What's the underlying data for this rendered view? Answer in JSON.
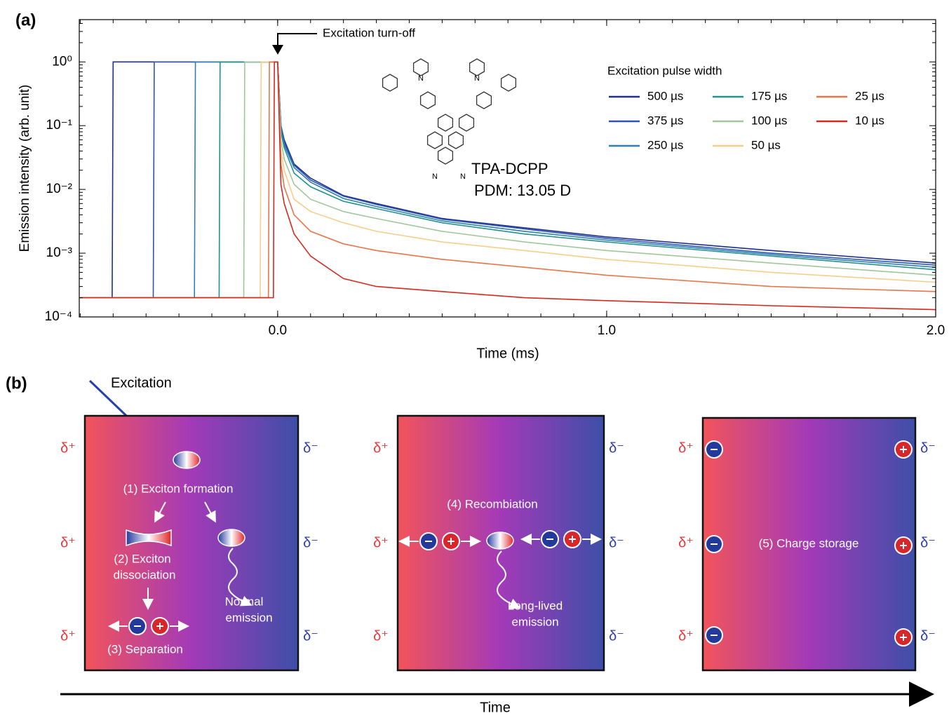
{
  "chart_data": {
    "type": "line",
    "panel_label": "(a)",
    "xlabel": "Time (ms)",
    "ylabel": "Emission intensity (arb. unit)",
    "annotation": "Excitation turn-off",
    "compound": "TPA-DCPP",
    "pdm": "PDM: 13.05 D",
    "atom_label": "N",
    "legend_title": "Excitation pulse width",
    "log_y": true,
    "xlim": [
      -0.603,
      2.0
    ],
    "xticks": [
      {
        "value": 0,
        "label": "0.0"
      },
      {
        "value": 1,
        "label": "1.0"
      },
      {
        "value": 2,
        "label": "2.0"
      }
    ],
    "ylim": [
      0.0001,
      4.6
    ],
    "yticks": [
      {
        "value": 0.0001,
        "label": "10⁻⁴"
      },
      {
        "value": 0.001,
        "label": "10⁻³"
      },
      {
        "value": 0.01,
        "label": "10⁻²"
      },
      {
        "value": 0.1,
        "label": "10⁻¹"
      },
      {
        "value": 1,
        "label": "10⁰"
      }
    ],
    "series": [
      {
        "name": "500 µs",
        "color": "#1f2f8f",
        "x": [
          -0.6,
          -0.503,
          -0.5,
          0,
          0.01,
          0.02,
          0.05,
          0.1,
          0.2,
          0.3,
          0.5,
          0.75,
          1.0,
          1.5,
          2.0
        ],
        "values": [
          0.0002,
          0.0002,
          1,
          1,
          0.1,
          0.06,
          0.025,
          0.015,
          0.008,
          0.006,
          0.0035,
          0.0025,
          0.0018,
          0.0011,
          0.0007
        ]
      },
      {
        "name": "375 µs",
        "color": "#2d55b0",
        "x": [
          -0.6,
          -0.378,
          -0.375,
          0,
          0.01,
          0.02,
          0.05,
          0.1,
          0.2,
          0.3,
          0.5,
          0.75,
          1.0,
          1.5,
          2.0
        ],
        "values": [
          0.0002,
          0.0002,
          1,
          1,
          0.1,
          0.055,
          0.024,
          0.014,
          0.0078,
          0.0058,
          0.0034,
          0.0024,
          0.0017,
          0.001,
          0.00065
        ]
      },
      {
        "name": "250 µs",
        "color": "#2f7fb0",
        "x": [
          -0.6,
          -0.253,
          -0.25,
          0,
          0.01,
          0.02,
          0.05,
          0.1,
          0.2,
          0.3,
          0.5,
          0.75,
          1.0,
          1.5,
          2.0
        ],
        "values": [
          0.0002,
          0.0002,
          1,
          1,
          0.09,
          0.05,
          0.022,
          0.013,
          0.0072,
          0.0054,
          0.0032,
          0.0022,
          0.0016,
          0.00095,
          0.0006
        ]
      },
      {
        "name": "175 µs",
        "color": "#22918f",
        "x": [
          -0.6,
          -0.178,
          -0.175,
          0,
          0.01,
          0.02,
          0.05,
          0.1,
          0.2,
          0.3,
          0.5,
          0.75,
          1.0,
          1.5,
          2.0
        ],
        "values": [
          0.0002,
          0.0002,
          1,
          1,
          0.08,
          0.045,
          0.018,
          0.011,
          0.0065,
          0.005,
          0.003,
          0.002,
          0.0015,
          0.0009,
          0.00055
        ]
      },
      {
        "name": "100 µs",
        "color": "#9fc89a",
        "x": [
          -0.6,
          -0.103,
          -0.1,
          0,
          0.01,
          0.02,
          0.05,
          0.1,
          0.2,
          0.3,
          0.5,
          0.75,
          1.0,
          1.5,
          2.0
        ],
        "values": [
          0.0002,
          0.0002,
          1,
          1,
          0.06,
          0.03,
          0.012,
          0.007,
          0.0045,
          0.0035,
          0.0022,
          0.0015,
          0.0011,
          0.0007,
          0.00045
        ]
      },
      {
        "name": "50 µs",
        "color": "#f5cf8a",
        "x": [
          -0.6,
          -0.053,
          -0.05,
          0,
          0.01,
          0.02,
          0.05,
          0.1,
          0.2,
          0.3,
          0.5,
          0.75,
          1.0,
          1.5,
          2.0
        ],
        "values": [
          0.0002,
          0.0002,
          1,
          1,
          0.04,
          0.02,
          0.007,
          0.0045,
          0.003,
          0.0022,
          0.0015,
          0.0011,
          0.0008,
          0.0005,
          0.00035
        ]
      },
      {
        "name": "25 µs",
        "color": "#e8764a",
        "x": [
          -0.6,
          -0.028,
          -0.025,
          0,
          0.01,
          0.02,
          0.05,
          0.1,
          0.2,
          0.3,
          0.5,
          0.75,
          1.0,
          1.5,
          2.0
        ],
        "values": [
          0.0002,
          0.0002,
          1,
          1,
          0.025,
          0.011,
          0.004,
          0.0022,
          0.0014,
          0.0011,
          0.0008,
          0.0006,
          0.00045,
          0.0003,
          0.00025
        ]
      },
      {
        "name": "10 µs",
        "color": "#d42a20",
        "x": [
          -0.6,
          -0.013,
          -0.01,
          0,
          0.01,
          0.02,
          0.05,
          0.1,
          0.2,
          0.3,
          0.5,
          0.75,
          1.0,
          1.5,
          2.0
        ],
        "values": [
          0.0002,
          0.0002,
          1,
          1,
          0.012,
          0.006,
          0.002,
          0.0009,
          0.0004,
          0.0003,
          0.00025,
          0.0002,
          0.00018,
          0.00015,
          0.00013
        ]
      }
    ]
  },
  "panel_b": {
    "panel_label": "(b)",
    "excitation": "Excitation",
    "delta_plus": "δ⁺",
    "delta_minus": "δ⁻",
    "formation": "(1) Exciton formation",
    "dissociation": [
      "(2) Exciton",
      "dissociation"
    ],
    "separation": "(3) Separation",
    "normal_emission": [
      "Normal",
      "emission"
    ],
    "recombination": "(4) Recombiation",
    "long_lived": [
      "Long-lived",
      "emission"
    ],
    "storage": "(5) Charge storage",
    "time": "Time"
  }
}
